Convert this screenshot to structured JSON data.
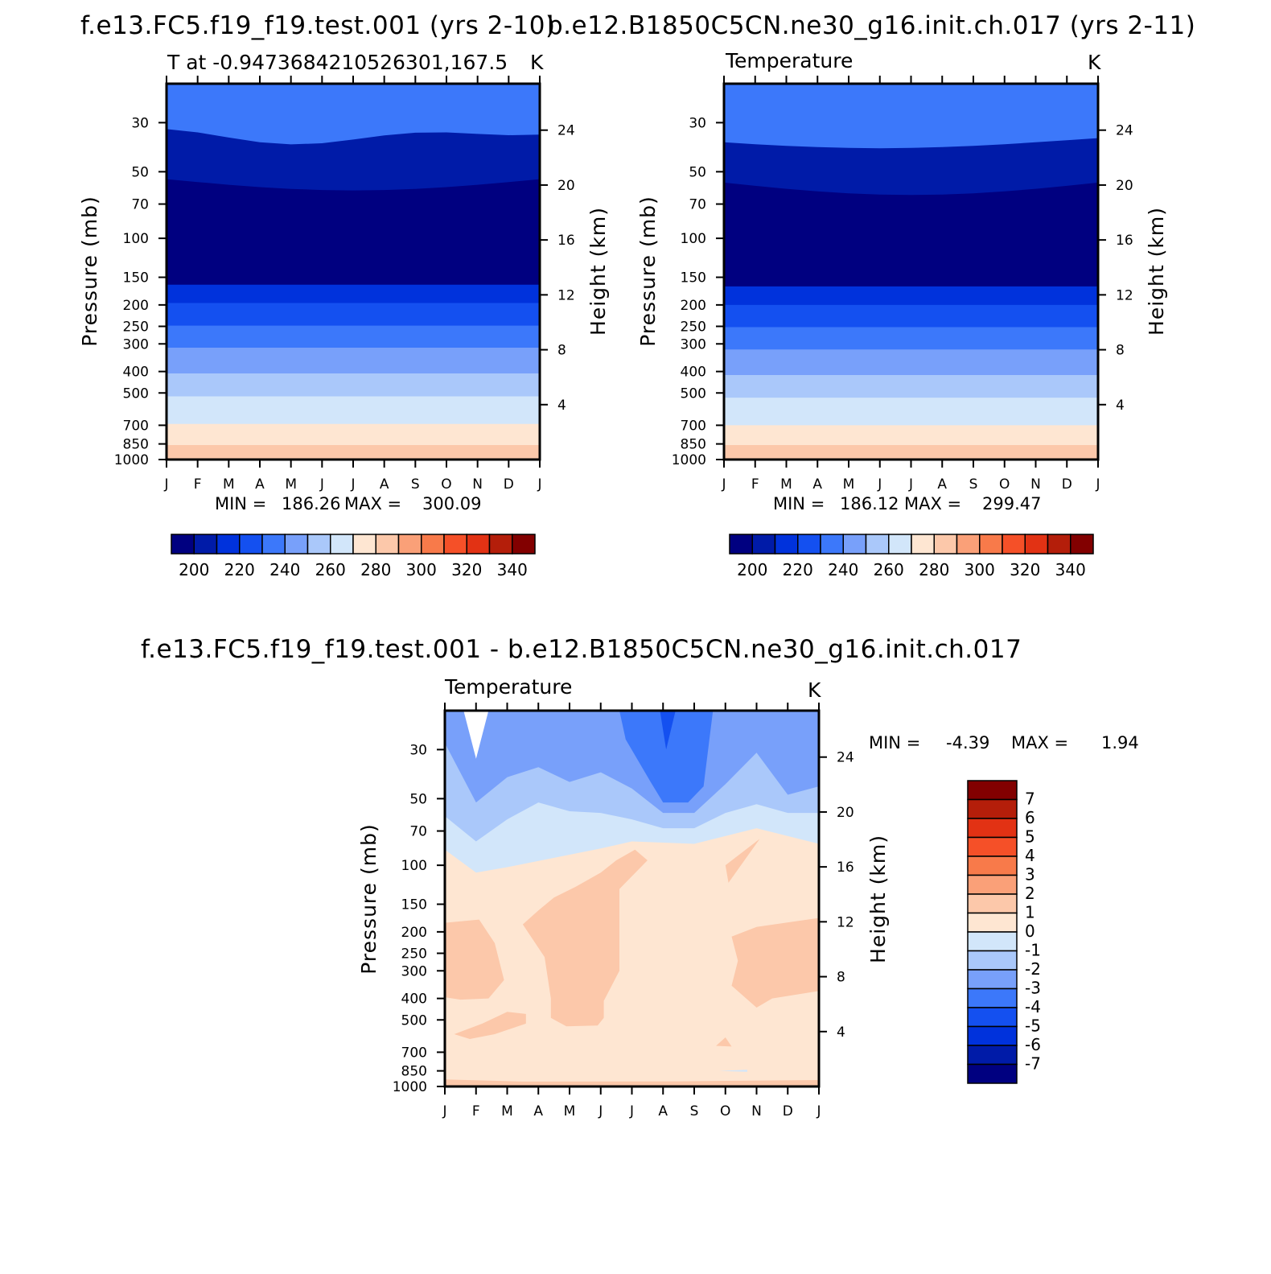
{
  "chart_data": [
    {
      "panel": "model",
      "type": "heatmap",
      "title": "f.e13.FC5.f19_f19.test.001 (yrs 2-10)",
      "subtitle_left": "T at -0.9473684210526301,167.5",
      "subtitle_right": "K",
      "ylabel": "Pressure (mb)",
      "ylabel_right": "Height (km)",
      "x_ticks": [
        "J",
        "F",
        "M",
        "A",
        "M",
        "J",
        "J",
        "A",
        "S",
        "O",
        "N",
        "D",
        "J"
      ],
      "y_ticks": [
        30,
        50,
        70,
        100,
        150,
        200,
        250,
        300,
        400,
        500,
        700,
        850,
        1000
      ],
      "y_ticks_right": [
        4,
        8,
        12,
        16,
        20,
        24
      ],
      "stats": {
        "min_label": "MIN =",
        "min": "186.26",
        "max_label": "MAX =",
        "max": "300.09"
      },
      "colorbar_labels": [
        "200",
        "220",
        "240",
        "260",
        "280",
        "300",
        "320",
        "340"
      ],
      "band_boundaries_mb": [
        {
          "level": 290,
          "p": 988,
          "shape": "flat"
        },
        {
          "level": 280,
          "p": 860,
          "shape": "flat"
        },
        {
          "level": 270,
          "p": 690,
          "shape": "flat"
        },
        {
          "level": 260,
          "p": 518,
          "shape": "flat"
        },
        {
          "level": 250,
          "p": 408,
          "shape": "flat"
        },
        {
          "level": 240,
          "p": 312,
          "shape": "flat"
        },
        {
          "level": 230,
          "p": 248,
          "shape": "flat"
        },
        {
          "level": 220,
          "p": 196,
          "shape": "flat"
        },
        {
          "level": 210,
          "p": 162,
          "shape": "flat"
        },
        {
          "level": 200,
          "p": 130,
          "shape": "flat"
        },
        {
          "level": 210,
          "p": 54,
          "shape": "lower"
        },
        {
          "level": 220,
          "p": 33,
          "shape": "upper"
        }
      ]
    },
    {
      "panel": "obs",
      "type": "heatmap",
      "title": "b.e12.B1850C5CN.ne30_g16.init.ch.017 (yrs 2-11)",
      "subtitle_left": "Temperature",
      "subtitle_right": "K",
      "ylabel": "Pressure (mb)",
      "ylabel_right": "Height (km)",
      "x_ticks": [
        "J",
        "F",
        "M",
        "A",
        "M",
        "J",
        "J",
        "A",
        "S",
        "O",
        "N",
        "D",
        "J"
      ],
      "y_ticks": [
        30,
        50,
        70,
        100,
        150,
        200,
        250,
        300,
        400,
        500,
        700,
        850,
        1000
      ],
      "y_ticks_right": [
        4,
        8,
        12,
        16,
        20,
        24
      ],
      "stats": {
        "min_label": "MIN =",
        "min": "186.12",
        "max_label": "MAX =",
        "max": "299.47"
      },
      "colorbar_labels": [
        "200",
        "220",
        "240",
        "260",
        "280",
        "300",
        "320",
        "340"
      ],
      "band_boundaries_mb": [
        {
          "level": 290,
          "p": 988,
          "shape": "flat"
        },
        {
          "level": 280,
          "p": 860,
          "shape": "flat"
        },
        {
          "level": 270,
          "p": 700,
          "shape": "flat"
        },
        {
          "level": 260,
          "p": 525,
          "shape": "flat"
        },
        {
          "level": 250,
          "p": 415,
          "shape": "flat"
        },
        {
          "level": 240,
          "p": 318,
          "shape": "flat"
        },
        {
          "level": 230,
          "p": 252,
          "shape": "flat"
        },
        {
          "level": 220,
          "p": 200,
          "shape": "flat"
        },
        {
          "level": 210,
          "p": 165,
          "shape": "flat"
        },
        {
          "level": 200,
          "p": 133,
          "shape": "flat"
        },
        {
          "level": 210,
          "p": 56,
          "shape": "lower"
        },
        {
          "level": 220,
          "p": 36,
          "shape": "upper"
        }
      ]
    },
    {
      "panel": "diff",
      "type": "heatmap",
      "title": "f.e13.FC5.f19_f19.test.001 - b.e12.B1850C5CN.ne30_g16.init.ch.017",
      "subtitle_left": "Temperature",
      "subtitle_right": "K",
      "ylabel": "Pressure (mb)",
      "ylabel_right": "Height (km)",
      "x_ticks": [
        "J",
        "F",
        "M",
        "A",
        "M",
        "J",
        "J",
        "A",
        "S",
        "O",
        "N",
        "D",
        "J"
      ],
      "y_ticks": [
        30,
        50,
        70,
        100,
        150,
        200,
        250,
        300,
        400,
        500,
        700,
        850,
        1000
      ],
      "y_ticks_right": [
        4,
        8,
        12,
        16,
        20,
        24
      ],
      "stats": {
        "min_label": "MIN =",
        "min": "-4.39",
        "max_label": "MAX =",
        "max": "1.94"
      },
      "colorbar_labels": [
        "7",
        "6",
        "5",
        "4",
        "3",
        "2",
        "1",
        "0",
        "-1",
        "-2",
        "-3",
        "-4",
        "-5",
        "-6",
        "-7"
      ],
      "background_level": "0 to 1",
      "notable_regions": [
        {
          "range": "-3 to -2",
          "where": "top above ~50 mb"
        },
        {
          "range": "-4 to -3",
          "where": "Jul-Sep near 25-50 mb"
        },
        {
          "range": "-2 to -1",
          "where": "~50-70 mb"
        },
        {
          "range": "-1 to 0",
          "where": "~70-100 mb"
        },
        {
          "range": "1 to 2",
          "where": "patches 150-600 mb"
        }
      ]
    }
  ],
  "colors": {
    "seq": [
      "#000080",
      "#001ba8",
      "#0032dc",
      "#1450f0",
      "#3c78fa",
      "#78a0fa",
      "#aac8fa",
      "#d2e6fa",
      "#fee6d2",
      "#fcc8aa",
      "#faa078",
      "#f87a4a",
      "#f55028",
      "#e23214",
      "#b41e0a",
      "#820000"
    ],
    "diff": [
      "#820000",
      "#b41e0a",
      "#e23214",
      "#f55028",
      "#f87a4a",
      "#faa078",
      "#fcc8aa",
      "#fee6d2",
      "#d2e6fa",
      "#aac8fa",
      "#78a0fa",
      "#3c78fa",
      "#1450f0",
      "#0032dc",
      "#001ba8",
      "#000080"
    ]
  }
}
